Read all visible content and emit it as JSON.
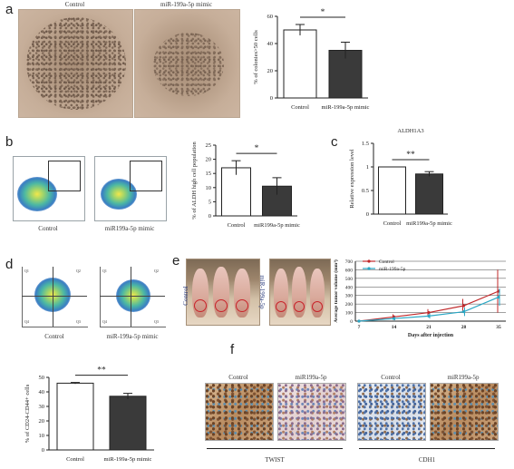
{
  "panels": {
    "a": {
      "letter": "a",
      "images": [
        {
          "label": "Control"
        },
        {
          "label": "miR-199a-5p mimic"
        }
      ],
      "sig": "*"
    },
    "b": {
      "letter": "b",
      "images": [
        {
          "label": "Control"
        },
        {
          "label": "miR199a-5p mimic"
        }
      ],
      "sig": "*"
    },
    "c": {
      "letter": "c",
      "title": "ALDH1A3",
      "sig": "**"
    },
    "d": {
      "letter": "d",
      "images": [
        {
          "label": "Control"
        },
        {
          "label": "miR-199a-5p mimic"
        }
      ],
      "sig": "**",
      "quadrant_labels": [
        "Q1",
        "Q2",
        "Q3",
        "Q4"
      ]
    },
    "e": {
      "letter": "e",
      "row_labels": [
        "Control",
        "miR-199a-5p"
      ]
    },
    "f": {
      "letter": "f",
      "images": [
        {
          "label": "Control"
        },
        {
          "label": "miR199a-5p"
        },
        {
          "label": "Control"
        },
        {
          "label": "miR199a-5p"
        }
      ],
      "groups": [
        "TWIST",
        "CDH1"
      ]
    }
  },
  "chart_data": [
    {
      "panel": "a",
      "type": "bar",
      "categories": [
        "Control",
        "miR-199a-5p mimic"
      ],
      "values": [
        50,
        35
      ],
      "errors": [
        4,
        6
      ],
      "ylabel": "% of colonies>50 cells",
      "ylim": [
        0,
        60
      ],
      "yticks": [
        0,
        20,
        40,
        60
      ],
      "colors": [
        "#ffffff",
        "#3a3a3a"
      ]
    },
    {
      "panel": "b",
      "type": "bar",
      "categories": [
        "Control",
        "miR199a-5p mimic"
      ],
      "values": [
        17,
        10.5
      ],
      "errors": [
        2.5,
        3
      ],
      "ylabel": "% of ALDH high cell population",
      "ylim": [
        0,
        25
      ],
      "yticks": [
        0,
        5,
        10,
        15,
        20,
        25
      ],
      "colors": [
        "#ffffff",
        "#3a3a3a"
      ]
    },
    {
      "panel": "c",
      "type": "bar",
      "categories": [
        "Control",
        "miR199a-5p mimic"
      ],
      "values": [
        1.0,
        0.85
      ],
      "errors": [
        0,
        0.05
      ],
      "title": "ALDH1A3",
      "ylabel": "Relative expression level",
      "ylim": [
        0,
        1.5
      ],
      "yticks": [
        0,
        0.5,
        1.0,
        1.5
      ],
      "colors": [
        "#ffffff",
        "#3a3a3a"
      ]
    },
    {
      "panel": "d",
      "type": "bar",
      "categories": [
        "Control",
        "miR-199a-5p mimic"
      ],
      "values": [
        46,
        37
      ],
      "errors": [
        0.5,
        2
      ],
      "ylabel": "% of CD24-CD44+ cells",
      "ylim": [
        0,
        50
      ],
      "yticks": [
        0,
        10,
        20,
        30,
        40,
        50
      ],
      "colors": [
        "#ffffff",
        "#3a3a3a"
      ]
    },
    {
      "panel": "e",
      "type": "line",
      "x": [
        7,
        14,
        21,
        28,
        35
      ],
      "series": [
        {
          "name": "Control",
          "values": [
            0,
            50,
            100,
            180,
            350
          ],
          "errors": [
            0,
            30,
            40,
            80,
            250
          ],
          "color": "#c0282a"
        },
        {
          "name": "miR-199a-5p",
          "values": [
            0,
            30,
            60,
            110,
            280
          ],
          "errors": [
            0,
            20,
            30,
            50,
            100
          ],
          "color": "#2aa7c4"
        }
      ],
      "xlabel": "Days after injection",
      "ylabel": "Average tumor volume (mm³)",
      "ylim": [
        0,
        700
      ],
      "yticks": [
        0,
        100,
        200,
        300,
        400,
        500,
        600,
        700
      ],
      "legend": "top-left"
    }
  ]
}
